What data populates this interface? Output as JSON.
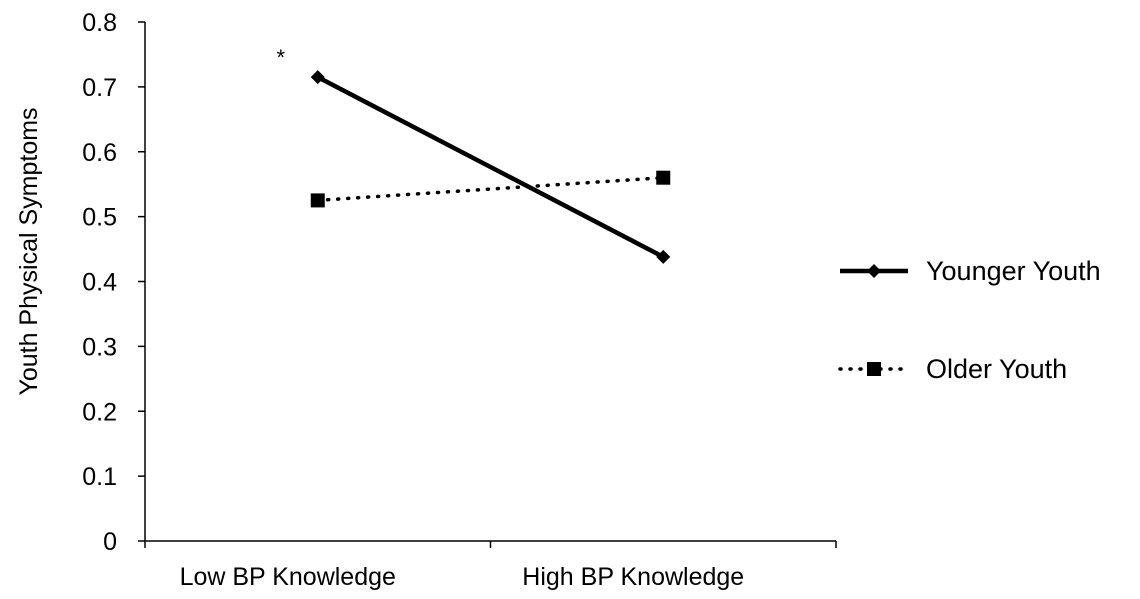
{
  "chart_data": {
    "type": "line",
    "title": "",
    "xlabel": "",
    "ylabel": "Youth Physical Symptoms",
    "ylim": [
      0,
      0.8
    ],
    "yticks": [
      "0",
      "0.1",
      "0.2",
      "0.3",
      "0.4",
      "0.5",
      "0.6",
      "0.7",
      "0.8"
    ],
    "categories": [
      "Low BP Knowledge",
      "High BP Knowledge"
    ],
    "series": [
      {
        "name": "Younger Youth",
        "values": [
          0.715,
          0.438
        ],
        "line_style": "solid",
        "marker": "diamond",
        "color": "#000000"
      },
      {
        "name": "Older Youth",
        "values": [
          0.525,
          0.56
        ],
        "line_style": "dotted",
        "marker": "square",
        "color": "#000000"
      }
    ],
    "annotations": [
      {
        "text": "*",
        "category": "Low BP Knowledge",
        "series": "Younger Youth"
      }
    ],
    "grid": false,
    "legend_position": "right"
  }
}
